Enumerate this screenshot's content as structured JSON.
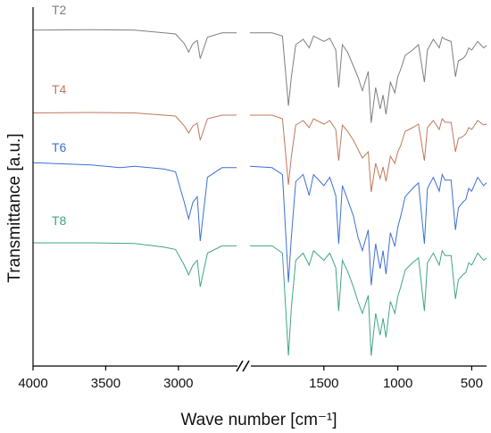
{
  "chart_data": {
    "type": "line",
    "title": "",
    "xlabel": "Wave number [cm⁻¹]",
    "ylabel": "Transmittance  [a.u.]",
    "x_reversed": true,
    "x_axis_break": true,
    "x_segments": [
      {
        "range": [
          4000,
          2600
        ],
        "ticks": [
          4000,
          3500,
          3000
        ]
      },
      {
        "range": [
          2000,
          400
        ],
        "ticks": [
          1500,
          1000,
          500
        ]
      }
    ],
    "tick_labels": [
      "4000",
      "3500",
      "3000",
      "1500",
      "1000",
      "500"
    ],
    "y_ticks_shown": false,
    "grid": false,
    "legend": "labels placed above each trace, left side",
    "colors": {
      "T2": "#7f7f7f",
      "T4": "#c0785a",
      "T6": "#3d6fd6",
      "T8": "#3fa586"
    },
    "series": [
      {
        "name": "T2",
        "points": [
          [
            4000,
            0.985
          ],
          [
            3600,
            0.99
          ],
          [
            3300,
            0.985
          ],
          [
            3100,
            0.96
          ],
          [
            3020,
            0.95
          ],
          [
            2960,
            0.86
          ],
          [
            2930,
            0.78
          ],
          [
            2900,
            0.86
          ],
          [
            2870,
            0.89
          ],
          [
            2850,
            0.72
          ],
          [
            2800,
            0.92
          ],
          [
            2700,
            0.96
          ],
          [
            2600,
            0.96
          ],
          [
            2000,
            0.96
          ],
          [
            1850,
            0.96
          ],
          [
            1780,
            0.93
          ],
          [
            1740,
            0.28
          ],
          [
            1720,
            0.55
          ],
          [
            1690,
            0.85
          ],
          [
            1640,
            0.9
          ],
          [
            1600,
            0.82
          ],
          [
            1570,
            0.93
          ],
          [
            1500,
            0.88
          ],
          [
            1460,
            0.91
          ],
          [
            1420,
            0.8
          ],
          [
            1400,
            0.45
          ],
          [
            1375,
            0.85
          ],
          [
            1340,
            0.78
          ],
          [
            1300,
            0.65
          ],
          [
            1270,
            0.55
          ],
          [
            1240,
            0.42
          ],
          [
            1200,
            0.6
          ],
          [
            1180,
            0.12
          ],
          [
            1150,
            0.45
          ],
          [
            1120,
            0.25
          ],
          [
            1100,
            0.38
          ],
          [
            1080,
            0.2
          ],
          [
            1050,
            0.5
          ],
          [
            1020,
            0.4
          ],
          [
            1000,
            0.55
          ],
          [
            980,
            0.62
          ],
          [
            950,
            0.75
          ],
          [
            900,
            0.8
          ],
          [
            860,
            0.85
          ],
          [
            820,
            0.5
          ],
          [
            800,
            0.8
          ],
          [
            760,
            0.9
          ],
          [
            720,
            0.82
          ],
          [
            700,
            0.92
          ],
          [
            680,
            0.9
          ],
          [
            640,
            0.88
          ],
          [
            610,
            0.55
          ],
          [
            590,
            0.7
          ],
          [
            560,
            0.72
          ],
          [
            540,
            0.75
          ],
          [
            520,
            0.82
          ],
          [
            500,
            0.8
          ],
          [
            460,
            0.88
          ],
          [
            420,
            0.82
          ],
          [
            400,
            0.84
          ]
        ]
      },
      {
        "name": "T4",
        "points": [
          [
            4000,
            0.985
          ],
          [
            3600,
            0.99
          ],
          [
            3300,
            0.985
          ],
          [
            3100,
            0.96
          ],
          [
            3020,
            0.95
          ],
          [
            2960,
            0.84
          ],
          [
            2930,
            0.76
          ],
          [
            2900,
            0.84
          ],
          [
            2870,
            0.87
          ],
          [
            2850,
            0.68
          ],
          [
            2800,
            0.92
          ],
          [
            2700,
            0.96
          ],
          [
            2600,
            0.96
          ],
          [
            2000,
            0.96
          ],
          [
            1850,
            0.96
          ],
          [
            1780,
            0.92
          ],
          [
            1740,
            0.18
          ],
          [
            1720,
            0.5
          ],
          [
            1690,
            0.85
          ],
          [
            1640,
            0.9
          ],
          [
            1600,
            0.82
          ],
          [
            1570,
            0.92
          ],
          [
            1500,
            0.86
          ],
          [
            1460,
            0.9
          ],
          [
            1420,
            0.8
          ],
          [
            1400,
            0.45
          ],
          [
            1375,
            0.85
          ],
          [
            1340,
            0.78
          ],
          [
            1300,
            0.68
          ],
          [
            1270,
            0.58
          ],
          [
            1240,
            0.48
          ],
          [
            1200,
            0.55
          ],
          [
            1180,
            0.1
          ],
          [
            1150,
            0.42
          ],
          [
            1120,
            0.25
          ],
          [
            1100,
            0.38
          ],
          [
            1080,
            0.22
          ],
          [
            1050,
            0.5
          ],
          [
            1020,
            0.42
          ],
          [
            1000,
            0.55
          ],
          [
            980,
            0.62
          ],
          [
            950,
            0.78
          ],
          [
            900,
            0.82
          ],
          [
            860,
            0.86
          ],
          [
            820,
            0.45
          ],
          [
            800,
            0.82
          ],
          [
            760,
            0.9
          ],
          [
            720,
            0.8
          ],
          [
            700,
            0.92
          ],
          [
            680,
            0.88
          ],
          [
            640,
            0.88
          ],
          [
            610,
            0.55
          ],
          [
            590,
            0.7
          ],
          [
            560,
            0.72
          ],
          [
            540,
            0.75
          ],
          [
            520,
            0.82
          ],
          [
            500,
            0.8
          ],
          [
            460,
            0.9
          ],
          [
            420,
            0.85
          ],
          [
            400,
            0.86
          ]
        ]
      },
      {
        "name": "T6",
        "points": [
          [
            4000,
            0.985
          ],
          [
            3600,
            0.97
          ],
          [
            3400,
            0.95
          ],
          [
            3300,
            0.96
          ],
          [
            3100,
            0.94
          ],
          [
            3020,
            0.92
          ],
          [
            2960,
            0.7
          ],
          [
            2930,
            0.58
          ],
          [
            2900,
            0.7
          ],
          [
            2870,
            0.74
          ],
          [
            2850,
            0.42
          ],
          [
            2800,
            0.88
          ],
          [
            2700,
            0.95
          ],
          [
            2600,
            0.95
          ],
          [
            2000,
            0.96
          ],
          [
            1850,
            0.95
          ],
          [
            1780,
            0.9
          ],
          [
            1740,
            0.12
          ],
          [
            1720,
            0.45
          ],
          [
            1690,
            0.85
          ],
          [
            1640,
            0.9
          ],
          [
            1600,
            0.75
          ],
          [
            1570,
            0.9
          ],
          [
            1500,
            0.82
          ],
          [
            1460,
            0.88
          ],
          [
            1420,
            0.75
          ],
          [
            1400,
            0.4
          ],
          [
            1375,
            0.82
          ],
          [
            1340,
            0.72
          ],
          [
            1300,
            0.6
          ],
          [
            1270,
            0.45
          ],
          [
            1240,
            0.35
          ],
          [
            1200,
            0.5
          ],
          [
            1180,
            0.1
          ],
          [
            1150,
            0.4
          ],
          [
            1120,
            0.22
          ],
          [
            1100,
            0.35
          ],
          [
            1080,
            0.18
          ],
          [
            1050,
            0.48
          ],
          [
            1020,
            0.38
          ],
          [
            1000,
            0.52
          ],
          [
            980,
            0.6
          ],
          [
            950,
            0.74
          ],
          [
            900,
            0.8
          ],
          [
            860,
            0.84
          ],
          [
            820,
            0.4
          ],
          [
            800,
            0.8
          ],
          [
            760,
            0.88
          ],
          [
            720,
            0.78
          ],
          [
            700,
            0.9
          ],
          [
            680,
            0.86
          ],
          [
            640,
            0.86
          ],
          [
            610,
            0.5
          ],
          [
            590,
            0.66
          ],
          [
            560,
            0.7
          ],
          [
            540,
            0.72
          ],
          [
            520,
            0.8
          ],
          [
            500,
            0.78
          ],
          [
            460,
            0.88
          ],
          [
            420,
            0.82
          ],
          [
            400,
            0.84
          ]
        ]
      },
      {
        "name": "T8",
        "points": [
          [
            4000,
            0.985
          ],
          [
            3600,
            0.985
          ],
          [
            3300,
            0.98
          ],
          [
            3100,
            0.95
          ],
          [
            3020,
            0.93
          ],
          [
            2960,
            0.8
          ],
          [
            2930,
            0.72
          ],
          [
            2900,
            0.8
          ],
          [
            2870,
            0.84
          ],
          [
            2850,
            0.62
          ],
          [
            2800,
            0.9
          ],
          [
            2700,
            0.96
          ],
          [
            2600,
            0.96
          ],
          [
            2000,
            0.96
          ],
          [
            1850,
            0.96
          ],
          [
            1780,
            0.9
          ],
          [
            1740,
            0.05
          ],
          [
            1720,
            0.45
          ],
          [
            1690,
            0.84
          ],
          [
            1640,
            0.9
          ],
          [
            1600,
            0.8
          ],
          [
            1570,
            0.92
          ],
          [
            1500,
            0.84
          ],
          [
            1460,
            0.9
          ],
          [
            1420,
            0.78
          ],
          [
            1400,
            0.42
          ],
          [
            1375,
            0.84
          ],
          [
            1340,
            0.75
          ],
          [
            1300,
            0.62
          ],
          [
            1270,
            0.5
          ],
          [
            1240,
            0.4
          ],
          [
            1200,
            0.55
          ],
          [
            1180,
            0.05
          ],
          [
            1150,
            0.4
          ],
          [
            1120,
            0.22
          ],
          [
            1100,
            0.36
          ],
          [
            1080,
            0.2
          ],
          [
            1050,
            0.5
          ],
          [
            1020,
            0.4
          ],
          [
            1000,
            0.54
          ],
          [
            980,
            0.62
          ],
          [
            950,
            0.76
          ],
          [
            900,
            0.82
          ],
          [
            860,
            0.86
          ],
          [
            820,
            0.42
          ],
          [
            800,
            0.82
          ],
          [
            760,
            0.9
          ],
          [
            720,
            0.8
          ],
          [
            700,
            0.92
          ],
          [
            680,
            0.88
          ],
          [
            640,
            0.88
          ],
          [
            610,
            0.52
          ],
          [
            590,
            0.68
          ],
          [
            560,
            0.72
          ],
          [
            540,
            0.74
          ],
          [
            520,
            0.82
          ],
          [
            500,
            0.8
          ],
          [
            460,
            0.9
          ],
          [
            420,
            0.84
          ],
          [
            400,
            0.86
          ]
        ]
      }
    ]
  }
}
